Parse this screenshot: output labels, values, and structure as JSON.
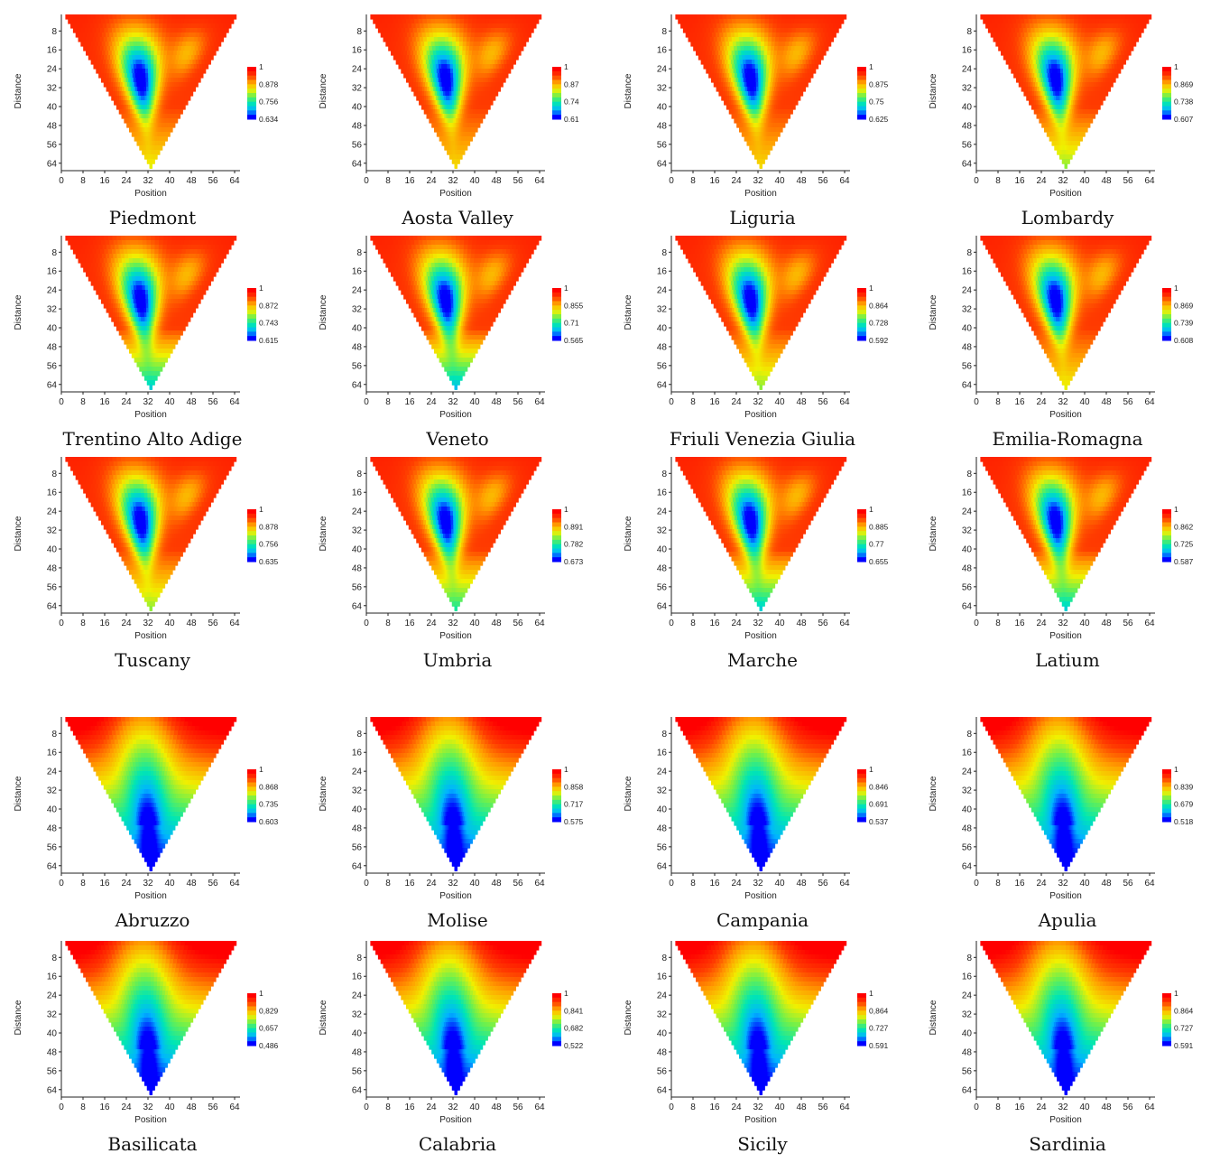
{
  "chart_data": {
    "type": "heatmap",
    "description_axes": {
      "xlabel": "Position",
      "ylabel": "Distance"
    },
    "xticks": [
      0,
      8,
      16,
      24,
      32,
      40,
      48,
      56,
      64
    ],
    "yticks": [
      8,
      16,
      24,
      32,
      40,
      48,
      56,
      64
    ],
    "xlim": [
      0,
      66
    ],
    "ylim_top_to_bottom": [
      1,
      66
    ],
    "colorscale": [
      "#0000ff",
      "#00b4ff",
      "#00e6b4",
      "#6cf04e",
      "#f0f000",
      "#ffa000",
      "#ff3c00",
      "#ff0000"
    ],
    "panels": [
      {
        "name": "Piedmont",
        "colorbar": [
          "1",
          "0.878",
          "0.756",
          "0.634"
        ],
        "pattern": "hole",
        "tip": 0.55
      },
      {
        "name": "Aosta Valley",
        "colorbar": [
          "1",
          "0.87",
          "0.74",
          "0.61"
        ],
        "pattern": "hole",
        "tip": 0.6
      },
      {
        "name": "Liguria",
        "colorbar": [
          "1",
          "0.875",
          "0.75",
          "0.625"
        ],
        "pattern": "hole",
        "tip": 0.6
      },
      {
        "name": "Lombardy",
        "colorbar": [
          "1",
          "0.869",
          "0.738",
          "0.607"
        ],
        "pattern": "hole",
        "tip": 0.45
      },
      {
        "name": "Trentino Alto Adige",
        "colorbar": [
          "1",
          "0.872",
          "0.743",
          "0.615"
        ],
        "pattern": "hole",
        "tip": 0.2
      },
      {
        "name": "Veneto",
        "colorbar": [
          "1",
          "0.855",
          "0.71",
          "0.565"
        ],
        "pattern": "hole",
        "tip": 0.15
      },
      {
        "name": "Friuli Venezia Giulia",
        "colorbar": [
          "1",
          "0.864",
          "0.728",
          "0.592"
        ],
        "pattern": "hole",
        "tip": 0.45
      },
      {
        "name": "Emilia-Romagna",
        "colorbar": [
          "1",
          "0.869",
          "0.739",
          "0.608"
        ],
        "pattern": "hole",
        "tip": 0.55
      },
      {
        "name": "Tuscany",
        "colorbar": [
          "1",
          "0.878",
          "0.756",
          "0.635"
        ],
        "pattern": "hole",
        "tip": 0.45
      },
      {
        "name": "Umbria",
        "colorbar": [
          "1",
          "0.891",
          "0.782",
          "0.673"
        ],
        "pattern": "hole",
        "tip": 0.3
      },
      {
        "name": "Marche",
        "colorbar": [
          "1",
          "0.885",
          "0.77",
          "0.655"
        ],
        "pattern": "hole",
        "tip": 0.2
      },
      {
        "name": "Latium",
        "colorbar": [
          "1",
          "0.862",
          "0.725",
          "0.587"
        ],
        "pattern": "hole",
        "tip": 0.2
      },
      {
        "name": "Abruzzo",
        "colorbar": [
          "1",
          "0.868",
          "0.735",
          "0.603"
        ],
        "pattern": "gradient",
        "tip": 0.0
      },
      {
        "name": "Molise",
        "colorbar": [
          "1",
          "0.858",
          "0.717",
          "0.575"
        ],
        "pattern": "gradient",
        "tip": 0.0
      },
      {
        "name": "Campania",
        "colorbar": [
          "1",
          "0.846",
          "0.691",
          "0.537"
        ],
        "pattern": "gradient",
        "tip": 0.0
      },
      {
        "name": "Apulia",
        "colorbar": [
          "1",
          "0.839",
          "0.679",
          "0.518"
        ],
        "pattern": "gradient",
        "tip": 0.0
      },
      {
        "name": "Basilicata",
        "colorbar": [
          "1",
          "0,829",
          "0,657",
          "0,486"
        ],
        "pattern": "gradient",
        "tip": 0.0
      },
      {
        "name": "Calabria",
        "colorbar": [
          "1",
          "0,841",
          "0,682",
          "0,522"
        ],
        "pattern": "gradient",
        "tip": 0.0
      },
      {
        "name": "Sicily",
        "colorbar": [
          "1",
          "0,864",
          "0.727",
          "0.591"
        ],
        "pattern": "gradient",
        "tip": 0.0
      },
      {
        "name": "Sardinia",
        "colorbar": [
          "1",
          "0.864",
          "0.727",
          "0.591"
        ],
        "pattern": "gradient",
        "tip": 0.0
      }
    ]
  }
}
